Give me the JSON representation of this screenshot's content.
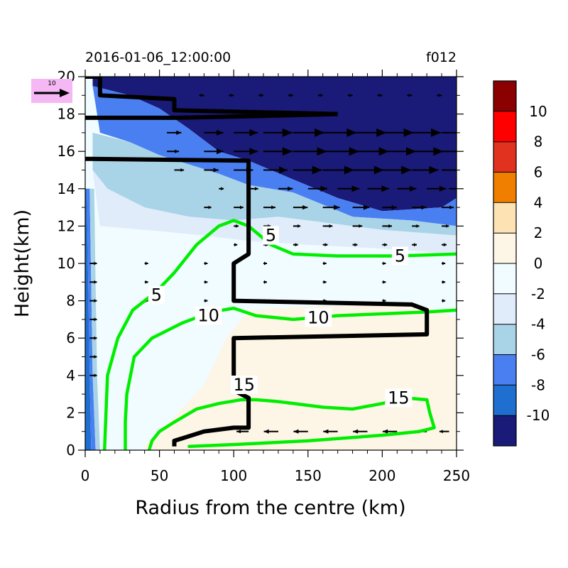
{
  "chart_data": {
    "type": "filled-contour",
    "title_left": "2016-01-06_12:00:00",
    "title_right": "f012",
    "xlabel": "Radius from the centre (km)",
    "ylabel": "Height(km)",
    "xlim": [
      0,
      250
    ],
    "ylim": [
      0,
      20
    ],
    "x_ticks": [
      0,
      50,
      100,
      150,
      200,
      250
    ],
    "y_ticks": [
      0,
      2,
      4,
      6,
      8,
      10,
      12,
      14,
      16,
      18,
      20
    ],
    "colorbar": {
      "levels": [
        -10,
        -8,
        -6,
        -4,
        -2,
        0,
        2,
        4,
        6,
        8,
        10
      ],
      "labels": [
        "10",
        "8",
        "6",
        "4",
        "2",
        "0",
        "-2",
        "-4",
        "-6",
        "-8",
        "-10"
      ],
      "colors": [
        "#8b0000",
        "#ff0000",
        "#e0321e",
        "#f07f00",
        "#fde3b4",
        "#fdf5e6",
        "#f0fcff",
        "#e0ecfa",
        "#a9d3e6",
        "#4a7ff2",
        "#1f6fd0",
        "#1a1a78"
      ]
    },
    "reference_vector": {
      "label": "10",
      "box_color": "#f5b8f5"
    },
    "fill_regions": [
      {
        "name": "upper-strong-negative",
        "color": "#1a1a78",
        "polygon": [
          [
            5,
            20
          ],
          [
            250,
            20
          ],
          [
            250,
            13.5
          ],
          [
            240,
            13
          ],
          [
            200,
            12.8
          ],
          [
            170,
            13.5
          ],
          [
            140,
            14.5
          ],
          [
            110,
            15.5
          ],
          [
            90,
            16
          ],
          [
            70,
            17.2
          ],
          [
            50,
            18.3
          ],
          [
            30,
            19
          ],
          [
            5,
            19.5
          ]
        ]
      },
      {
        "name": "upper-negative-band",
        "color": "#4a7ff2",
        "polygon": [
          [
            5,
            19.5
          ],
          [
            30,
            19
          ],
          [
            50,
            18.3
          ],
          [
            70,
            17.2
          ],
          [
            90,
            16
          ],
          [
            110,
            15.5
          ],
          [
            140,
            14.5
          ],
          [
            170,
            13.5
          ],
          [
            200,
            12.8
          ],
          [
            240,
            13
          ],
          [
            250,
            13.5
          ],
          [
            250,
            12
          ],
          [
            220,
            12.3
          ],
          [
            180,
            12.5
          ],
          [
            140,
            13.8
          ],
          [
            110,
            14.2
          ],
          [
            90,
            14.8
          ],
          [
            70,
            15.3
          ],
          [
            50,
            15.8
          ],
          [
            30,
            16.5
          ],
          [
            10,
            17
          ]
        ]
      },
      {
        "name": "upper-weak-negative",
        "color": "#a9d3e6",
        "polygon": [
          [
            5,
            17
          ],
          [
            30,
            16.5
          ],
          [
            50,
            15.8
          ],
          [
            70,
            15.3
          ],
          [
            90,
            14.8
          ],
          [
            110,
            14.2
          ],
          [
            140,
            13.8
          ],
          [
            180,
            12.5
          ],
          [
            220,
            12.3
          ],
          [
            250,
            12
          ],
          [
            250,
            11.5
          ],
          [
            200,
            11.8
          ],
          [
            160,
            12.2
          ],
          [
            130,
            12.5
          ],
          [
            100,
            12.3
          ],
          [
            70,
            12.5
          ],
          [
            40,
            13
          ],
          [
            15,
            14
          ],
          [
            5,
            15
          ]
        ]
      },
      {
        "name": "upper-slight-negative",
        "color": "#e0ecfa",
        "polygon": [
          [
            5,
            15
          ],
          [
            15,
            14
          ],
          [
            40,
            13
          ],
          [
            70,
            12.5
          ],
          [
            100,
            12.3
          ],
          [
            130,
            12.5
          ],
          [
            160,
            12.2
          ],
          [
            200,
            11.8
          ],
          [
            250,
            11.5
          ],
          [
            250,
            10.5
          ],
          [
            200,
            10.8
          ],
          [
            150,
            11
          ],
          [
            110,
            11.2
          ],
          [
            80,
            11.5
          ],
          [
            40,
            11.8
          ],
          [
            10,
            12
          ]
        ]
      },
      {
        "name": "lower-positive",
        "color": "#fdf5e6",
        "polygon": [
          [
            40,
            0.3
          ],
          [
            60,
            1.8
          ],
          [
            80,
            3.5
          ],
          [
            95,
            6
          ],
          [
            110,
            7.5
          ],
          [
            150,
            7.7
          ],
          [
            200,
            7.8
          ],
          [
            240,
            7.5
          ],
          [
            250,
            7
          ],
          [
            250,
            0
          ],
          [
            40,
            0
          ]
        ]
      },
      {
        "name": "inner-core-strong-negative",
        "color": "#1f6fd0",
        "polygon": [
          [
            0,
            0
          ],
          [
            4,
            0
          ],
          [
            3,
            4
          ],
          [
            2,
            9
          ],
          [
            1,
            14
          ],
          [
            0,
            14
          ]
        ]
      },
      {
        "name": "inner-core-negative",
        "color": "#4a7ff2",
        "polygon": [
          [
            4,
            0
          ],
          [
            7,
            0
          ],
          [
            5,
            4
          ],
          [
            4,
            9
          ],
          [
            3,
            14
          ],
          [
            1,
            14
          ],
          [
            2,
            9
          ],
          [
            3,
            4
          ]
        ]
      },
      {
        "name": "inner-core-weak",
        "color": "#a9d3e6",
        "polygon": [
          [
            7,
            0
          ],
          [
            10,
            0
          ],
          [
            8,
            4
          ],
          [
            7,
            9
          ],
          [
            6,
            14
          ],
          [
            3,
            14
          ],
          [
            4,
            9
          ],
          [
            5,
            4
          ]
        ]
      }
    ],
    "contour_lines": [
      {
        "name": "contour-5",
        "color": "#00ee00",
        "label": "5",
        "points": [
          [
            13,
            0
          ],
          [
            14,
            2
          ],
          [
            15,
            4
          ],
          [
            22,
            6
          ],
          [
            32,
            7.5
          ],
          [
            48,
            8.5
          ],
          [
            60,
            9.5
          ],
          [
            75,
            11
          ],
          [
            90,
            12
          ],
          [
            100,
            12.3
          ],
          [
            110,
            12
          ],
          [
            125,
            11
          ],
          [
            140,
            10.5
          ],
          [
            170,
            10.4
          ],
          [
            210,
            10.4
          ],
          [
            250,
            10.5
          ]
        ],
        "label_at": [
          [
            48,
            8.3
          ],
          [
            125,
            11.5
          ],
          [
            212,
            10.4
          ]
        ]
      },
      {
        "name": "contour-10",
        "color": "#00ee00",
        "label": "10",
        "points": [
          [
            27,
            0
          ],
          [
            27,
            1.5
          ],
          [
            28,
            3
          ],
          [
            33,
            5
          ],
          [
            45,
            6
          ],
          [
            65,
            6.8
          ],
          [
            85,
            7.4
          ],
          [
            100,
            7.6
          ],
          [
            115,
            7.2
          ],
          [
            140,
            7
          ],
          [
            170,
            7.2
          ],
          [
            200,
            7.3
          ],
          [
            230,
            7.4
          ],
          [
            250,
            7.5
          ]
        ],
        "label_at": [
          [
            83,
            7.2
          ],
          [
            157,
            7.1
          ]
        ]
      },
      {
        "name": "contour-15",
        "color": "#00ee00",
        "label": "15",
        "points": [
          [
            43,
            0
          ],
          [
            45,
            0.5
          ],
          [
            50,
            1
          ],
          [
            60,
            1.5
          ],
          [
            75,
            2.2
          ],
          [
            90,
            2.5
          ],
          [
            105,
            2.7
          ],
          [
            115,
            2.7
          ],
          [
            130,
            2.6
          ],
          [
            160,
            2.3
          ],
          [
            180,
            2.2
          ],
          [
            200,
            2.5
          ],
          [
            215,
            2.8
          ],
          [
            230,
            2.7
          ],
          [
            232,
            2
          ],
          [
            235,
            1.2
          ],
          [
            225,
            1
          ],
          [
            200,
            0.8
          ],
          [
            150,
            0.5
          ],
          [
            100,
            0.3
          ],
          [
            70,
            0.2
          ]
        ],
        "label_at": [
          [
            107,
            3.5
          ],
          [
            211,
            2.8
          ]
        ]
      }
    ],
    "zero_line": {
      "name": "black-zero-contour",
      "color": "#000000",
      "points": [
        [
          60,
          0.2
        ],
        [
          60,
          0.5
        ],
        [
          80,
          1
        ],
        [
          100,
          1.2
        ],
        [
          110,
          1.2
        ],
        [
          110,
          2.8
        ],
        [
          100,
          3.2
        ],
        [
          100,
          6
        ],
        [
          230,
          6.2
        ],
        [
          230,
          7.5
        ],
        [
          220,
          7.8
        ],
        [
          100,
          8
        ],
        [
          100,
          10
        ],
        [
          110,
          10.5
        ],
        [
          110,
          15.5
        ],
        [
          0,
          15.6
        ]
      ],
      "top_segments": [
        [
          [
            0,
            20
          ],
          [
            10,
            20
          ],
          [
            10,
            19
          ],
          [
            60,
            18.8
          ],
          [
            60,
            18.2
          ],
          [
            170,
            18
          ]
        ],
        [
          [
            0,
            17.8
          ],
          [
            60,
            17.8
          ],
          [
            120,
            17.9
          ],
          [
            170,
            18
          ]
        ]
      ]
    },
    "vector_rows": [
      {
        "y": 19,
        "x": [
          80,
          100,
          120,
          140,
          160,
          180,
          200,
          220,
          240
        ],
        "u": [
          -2,
          -2,
          -2,
          -2,
          -2,
          -2,
          -2,
          -2,
          -2
        ]
      },
      {
        "y": 17,
        "x": [
          55,
          80,
          100,
          120,
          140,
          160,
          180,
          200,
          220,
          240
        ],
        "u": [
          6,
          8,
          10,
          12,
          13,
          14,
          14,
          13,
          12,
          10
        ]
      },
      {
        "y": 16,
        "x": [
          55,
          80,
          100,
          120,
          140,
          160,
          180,
          200,
          220,
          240
        ],
        "u": [
          5,
          8,
          10,
          12,
          14,
          15,
          15,
          14,
          13,
          12
        ]
      },
      {
        "y": 15,
        "x": [
          60,
          80,
          100,
          120,
          140,
          160,
          180,
          200,
          220,
          240
        ],
        "u": [
          4,
          6,
          8,
          10,
          12,
          13,
          13,
          12,
          11,
          10
        ]
      },
      {
        "y": 14,
        "x": [
          90,
          110,
          130,
          150,
          170,
          190,
          210,
          230,
          245
        ],
        "u": [
          2,
          4,
          6,
          8,
          9,
          9,
          8,
          8,
          7
        ]
      },
      {
        "y": 13,
        "x": [
          80,
          100,
          120,
          140,
          160,
          180,
          200,
          220,
          240
        ],
        "u": [
          3,
          4,
          5,
          6,
          7,
          7,
          6,
          6,
          5
        ]
      },
      {
        "y": 12,
        "x": [
          100,
          120,
          140,
          160,
          180,
          200,
          220,
          240
        ],
        "u": [
          2,
          3,
          3,
          4,
          4,
          4,
          3,
          3
        ]
      },
      {
        "y": 11,
        "x": [
          100,
          120,
          140,
          160,
          180,
          200,
          220,
          240
        ],
        "u": [
          1,
          2,
          2,
          2,
          2,
          2,
          2,
          2
        ]
      },
      {
        "y": 10,
        "x": [
          3,
          40,
          80,
          120,
          160,
          200,
          240
        ],
        "u": [
          3,
          0.6,
          0.6,
          1,
          1,
          1,
          1
        ]
      },
      {
        "y": 9,
        "x": [
          3,
          40,
          80,
          120,
          160,
          200,
          240
        ],
        "u": [
          3,
          0.6,
          0.6,
          0.6,
          0.6,
          0.6,
          0.6
        ]
      },
      {
        "y": 8,
        "x": [
          3,
          40,
          80,
          120,
          160,
          200,
          240
        ],
        "u": [
          3,
          0.6,
          0.6,
          0.6,
          0.6,
          0.6,
          0.6
        ]
      },
      {
        "y": 7,
        "x": [
          3
        ],
        "u": [
          3
        ]
      },
      {
        "y": 6,
        "x": [
          3
        ],
        "u": [
          3
        ]
      },
      {
        "y": 5,
        "x": [
          3
        ],
        "u": [
          3
        ]
      },
      {
        "y": 4,
        "x": [
          3
        ],
        "u": [
          3
        ]
      },
      {
        "y": 1,
        "x": [
          110,
          130,
          150,
          170,
          190,
          210,
          230,
          245
        ],
        "u": [
          -5,
          -6,
          -6,
          -6,
          -6,
          -6,
          -5,
          -4
        ]
      }
    ],
    "vector_glyph_rows": [
      19,
      17,
      16,
      15,
      14,
      13,
      12,
      11,
      10,
      9,
      8,
      7,
      6,
      5,
      4,
      1
    ]
  }
}
